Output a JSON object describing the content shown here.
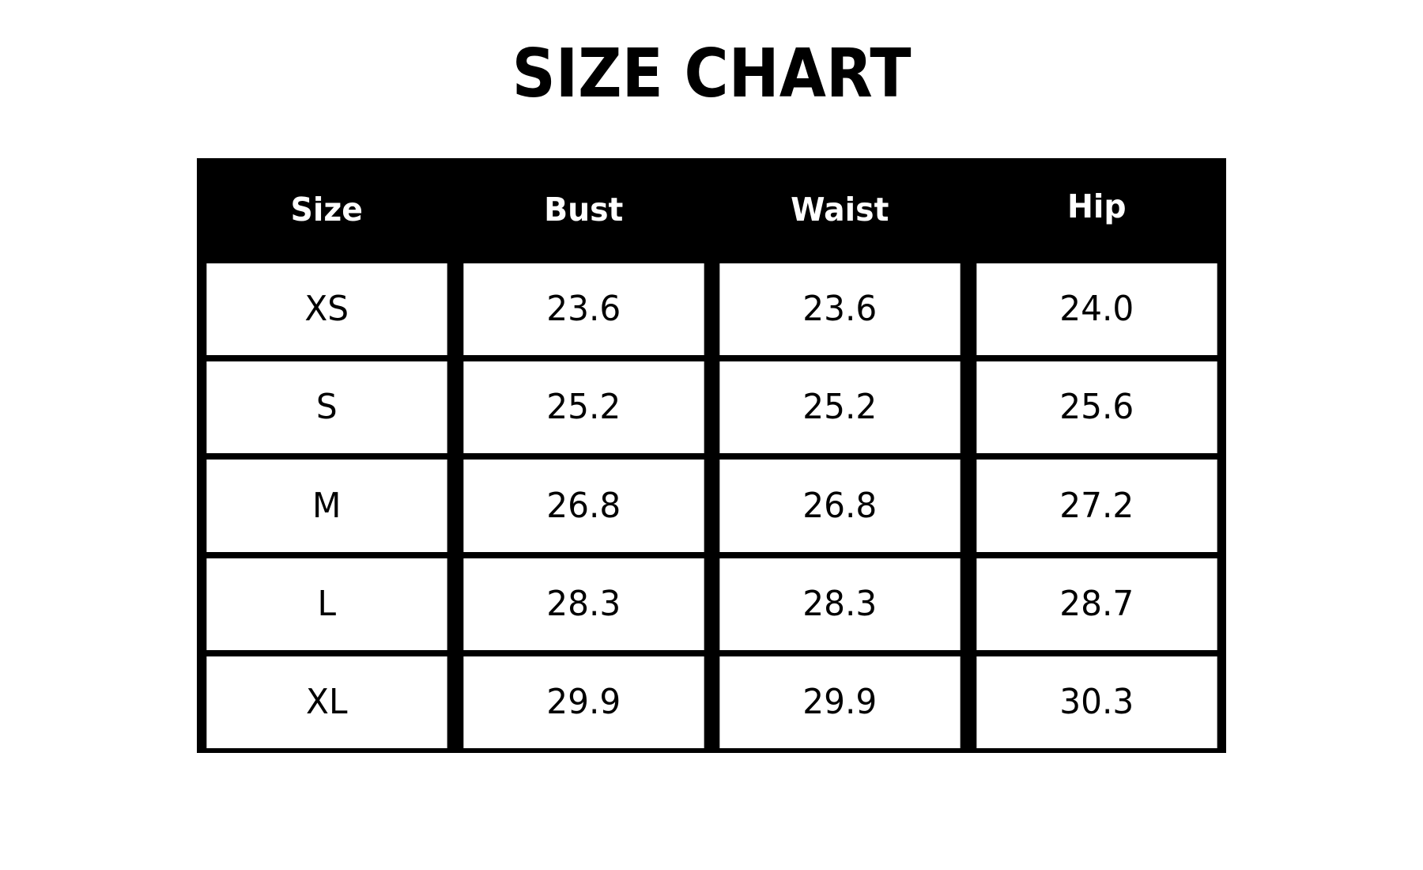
{
  "title": "SIZE CHART",
  "chart_data": {
    "type": "table",
    "title": "SIZE CHART",
    "columns": [
      "Size",
      "Bust",
      "Waist",
      "Hip"
    ],
    "rows": [
      [
        "XS",
        "23.6",
        "23.6",
        "24.0"
      ],
      [
        "S",
        "25.2",
        "25.2",
        "25.6"
      ],
      [
        "M",
        "26.8",
        "26.8",
        "27.2"
      ],
      [
        "L",
        "28.3",
        "28.3",
        "28.7"
      ],
      [
        "XL",
        "29.9",
        "29.9",
        "30.3"
      ]
    ],
    "layout": {
      "legend": "none",
      "grid": "on",
      "header_position": "top"
    },
    "colors": {
      "page_background": "#ffffff",
      "header_background": "#000000",
      "header_text": "#ffffff",
      "cell_background": "#ffffff",
      "cell_text": "#000000",
      "border": "#000000",
      "title_text": "#000000"
    }
  }
}
